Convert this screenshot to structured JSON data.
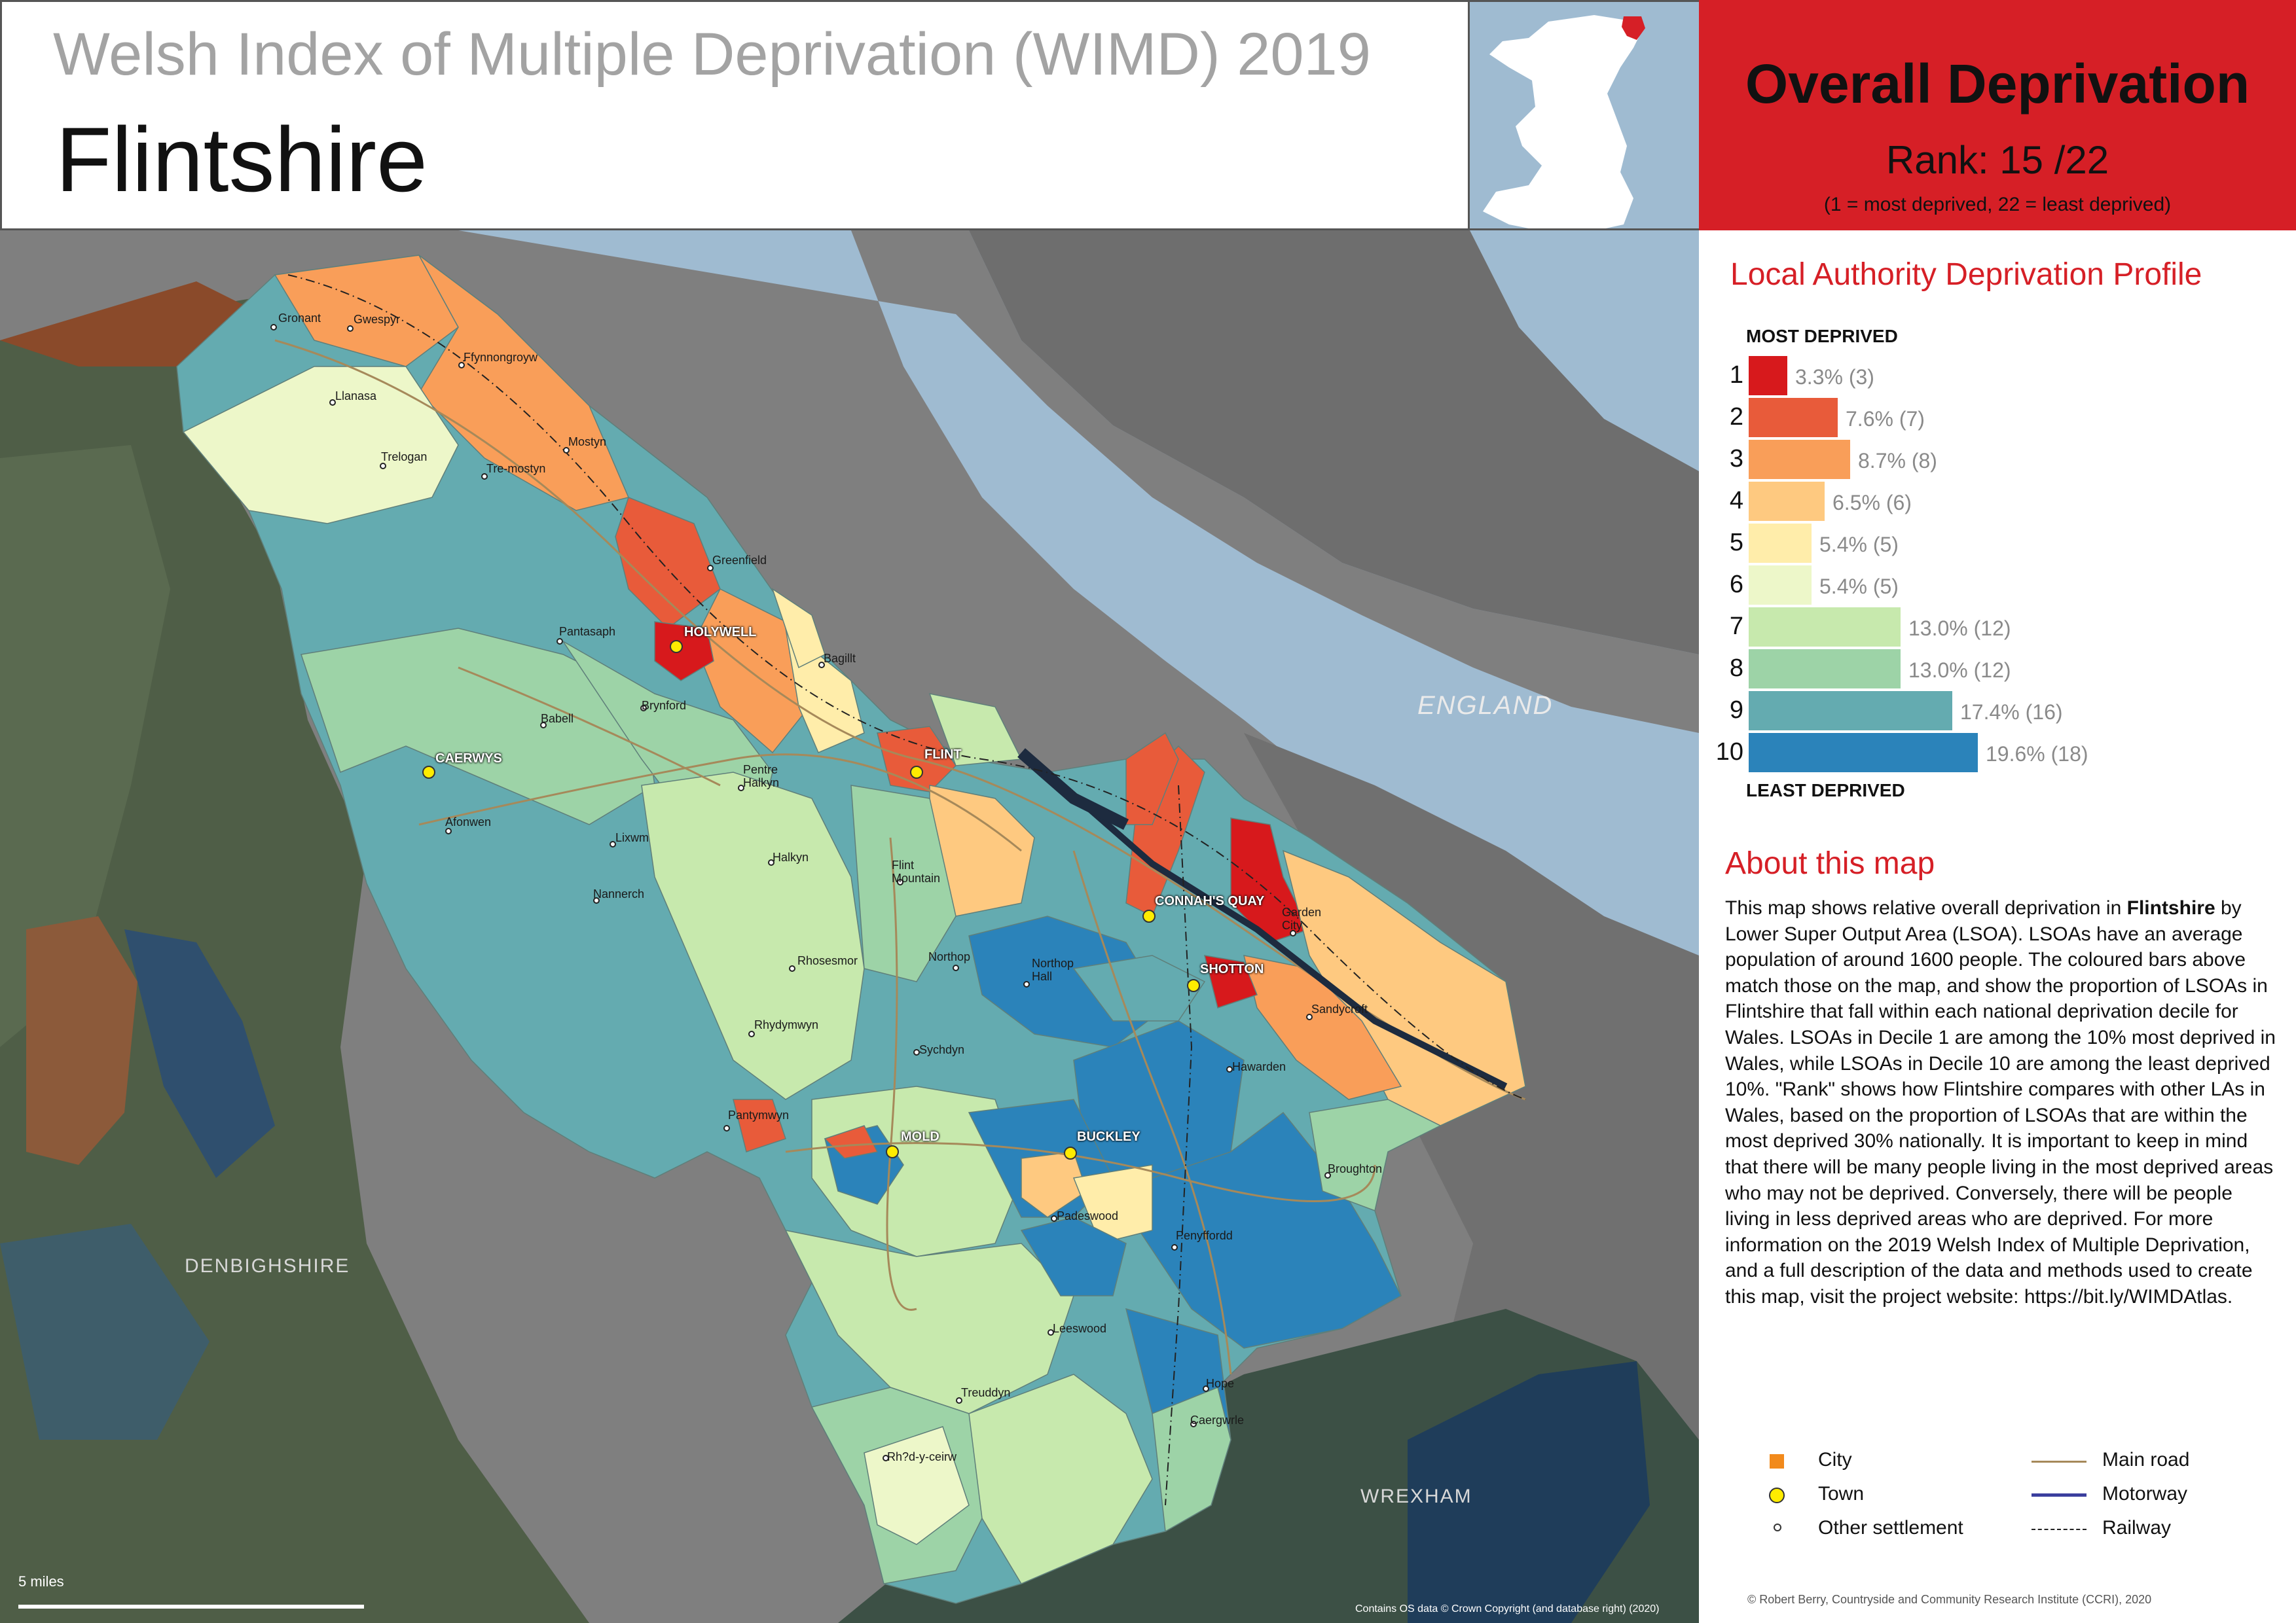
{
  "header": {
    "subtitle": "Welsh Index of Multiple Deprivation (WIMD) 2019",
    "title": "Flintshire"
  },
  "summary": {
    "heading": "Overall Deprivation",
    "rank_prefix": "Rank:",
    "rank_value": "15 /22",
    "rank_note": "(1 =   most deprived, 22 = least deprived)"
  },
  "profile": {
    "title": "Local Authority Deprivation Profile",
    "most_label": "MOST DEPRIVED",
    "least_label": "LEAST DEPRIVED",
    "deciles": [
      {
        "decile": "1",
        "percent": 3.3,
        "count": 3,
        "label": "3.3% (3)",
        "color": "#d7191c"
      },
      {
        "decile": "2",
        "percent": 7.6,
        "count": 7,
        "label": "7.6% (7)",
        "color": "#e85b3a"
      },
      {
        "decile": "3",
        "percent": 8.7,
        "count": 8,
        "label": "8.7% (8)",
        "color": "#f99e59"
      },
      {
        "decile": "4",
        "percent": 6.5,
        "count": 6,
        "label": "6.5% (6)",
        "color": "#fec980"
      },
      {
        "decile": "5",
        "percent": 5.4,
        "count": 5,
        "label": "5.4% (5)",
        "color": "#ffedaa"
      },
      {
        "decile": "6",
        "percent": 5.4,
        "count": 5,
        "label": "5.4% (5)",
        "color": "#edf7c9"
      },
      {
        "decile": "7",
        "percent": 13.0,
        "count": 12,
        "label": "13.0% (12)",
        "color": "#c7e9ad"
      },
      {
        "decile": "8",
        "percent": 13.0,
        "count": 12,
        "label": "13.0% (12)",
        "color": "#9dd3a7"
      },
      {
        "decile": "9",
        "percent": 17.4,
        "count": 16,
        "label": "17.4% (16)",
        "color": "#64abb0"
      },
      {
        "decile": "10",
        "percent": 19.6,
        "count": 18,
        "label": "19.6% (18)",
        "color": "#2b83ba"
      }
    ]
  },
  "about": {
    "title": "About this map",
    "text_1": "This map shows relative overall deprivation in",
    "text_bold": "Flintshire",
    "text_2": " by Lower Super Output Area (LSOA). LSOAs have an average population of around 1600 people. The coloured bars above match those on the map, and show the proportion of LSOAs in Flintshire that fall within each national deprivation decile for Wales. LSOAs in Decile 1 are among the 10% most deprived in Wales, while LSOAs in Decile 10 are among the least deprived 10%. \"Rank\" shows how Flintshire compares with other LAs in Wales, based on the proportion of LSOAs that are within the most deprived 30% nationally. It is important to keep in mind that there will be many people living in the most deprived areas who may not be deprived. Conversely, there will be people living in less deprived areas who are deprived. For more information on the 2019 Welsh Index of Multiple Deprivation, and a full description of the data and methods used to create this map, visit the project website: https://bit.ly/WIMDAtlas."
  },
  "legend": {
    "city": "City",
    "town": "Town",
    "other": "Other settlement",
    "main_road": "Main road",
    "motorway": "Motorway",
    "railway": "Railway"
  },
  "credits": {
    "right": "© Robert Berry, Countryside and Community Research Institute (CCRI), 2020",
    "map": "Contains OS data © Crown Copyright (and database right) (2020)"
  },
  "map": {
    "scale": "5 miles",
    "regions": {
      "england": "ENGLAND",
      "denbighshire": "DENBIGHSHIRE",
      "wrexham": "WREXHAM"
    },
    "towns": {
      "holywell": "HOLYWELL",
      "flint": "FLINT",
      "caerwys": "CAERWYS",
      "connahs_quay": "CONNAH'S QUAY",
      "shotton": "SHOTTON",
      "mold": "MOLD",
      "buckley": "BUCKLEY"
    },
    "places": {
      "gronant": "Gronant",
      "gwespyr": "Gwespyr",
      "ffynnongroyw": "Ffynnongroyw",
      "llanasa": "Llanasa",
      "mostyn": "Mostyn",
      "trelogan": "Trelogan",
      "tre_mostyn": "Tre-mostyn",
      "greenfield": "Greenfield",
      "pantasaph": "Pantasaph",
      "bagillt": "Bagillt",
      "babell": "Babell",
      "brynford": "Brynford",
      "pentre_halkyn": "Pentre\nHalkyn",
      "afonwen": "Afonwen",
      "lixwm": "Lixwm",
      "halkyn": "Halkyn",
      "flint_mountain": "Flint\nMountain",
      "nannerch": "Nannerch",
      "garden_city": "Garden\nCity",
      "northop": "Northop",
      "northop_hall": "Northop\nHall",
      "rhosesmor": "Rhosesmor",
      "sandycroft": "Sandycroft",
      "rhydymwyn": "Rhydymwyn",
      "sychdyn": "Sychdyn",
      "hawarden": "Hawarden",
      "pantymwyn": "Pantymwyn",
      "broughton": "Broughton",
      "padeswood": "Padeswood",
      "penyffordd": "Penyffordd",
      "leeswood": "Leeswood",
      "treuddyn": "Treuddyn",
      "hope": "Hope",
      "caergwrle": "Caergwrle",
      "rhyd_y_ceirw": "Rh?d-y-ceirw"
    }
  }
}
